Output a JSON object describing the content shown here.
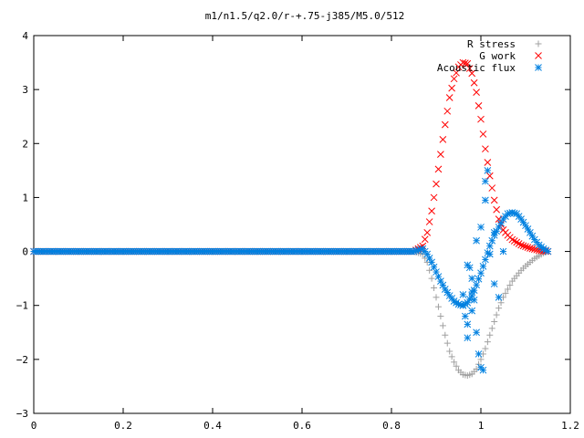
{
  "chart_data": {
    "type": "scatter",
    "title": "m1/n1.5/q2.0/r-+.75-j385/M5.0/512",
    "xlabel": "",
    "ylabel": "",
    "xlim": [
      0,
      1.2
    ],
    "ylim": [
      -3,
      4
    ],
    "x_ticks": [
      "0",
      "0.2",
      "0.4",
      "0.6",
      "0.8",
      "1",
      "1.2"
    ],
    "y_ticks": [
      "4",
      "3",
      "2",
      "1",
      "0",
      "−1",
      "−2",
      "−3"
    ],
    "x_tick_values": [
      0,
      0.2,
      0.4,
      0.6,
      0.8,
      1.0,
      1.2
    ],
    "y_tick_values": [
      4,
      3,
      2,
      1,
      0,
      -1,
      -2,
      -3
    ],
    "legend_position": "top-right",
    "grid": false,
    "series": [
      {
        "name": "R stress",
        "marker": "+",
        "color": "#a0a0a0",
        "x": [
          0.0,
          0.1,
          0.2,
          0.3,
          0.4,
          0.5,
          0.6,
          0.7,
          0.8,
          0.85,
          0.87,
          0.88,
          0.89,
          0.9,
          0.91,
          0.92,
          0.93,
          0.94,
          0.95,
          0.96,
          0.97,
          0.98,
          0.99,
          1.0,
          1.01,
          1.02,
          1.03,
          1.04,
          1.05,
          1.06,
          1.07,
          1.08,
          1.09,
          1.1,
          1.11,
          1.12,
          1.13,
          1.14,
          1.15
        ],
        "y": [
          0,
          0,
          0,
          0,
          0,
          0,
          0,
          0,
          0,
          0,
          -0.05,
          -0.2,
          -0.5,
          -0.85,
          -1.2,
          -1.55,
          -1.85,
          -2.05,
          -2.2,
          -2.28,
          -2.3,
          -2.27,
          -2.18,
          -2.0,
          -1.8,
          -1.55,
          -1.3,
          -1.05,
          -0.85,
          -0.7,
          -0.55,
          -0.45,
          -0.35,
          -0.27,
          -0.2,
          -0.13,
          -0.08,
          -0.03,
          0
        ]
      },
      {
        "name": "G work",
        "marker": "x",
        "color": "#ff0000",
        "x": [
          0.0,
          0.1,
          0.2,
          0.3,
          0.4,
          0.5,
          0.6,
          0.7,
          0.8,
          0.85,
          0.87,
          0.88,
          0.89,
          0.9,
          0.91,
          0.92,
          0.93,
          0.94,
          0.95,
          0.96,
          0.97,
          0.98,
          0.99,
          1.0,
          1.01,
          1.02,
          1.03,
          1.04,
          1.05,
          1.06,
          1.07,
          1.08,
          1.09,
          1.1,
          1.11,
          1.12,
          1.13,
          1.14,
          1.15
        ],
        "y": [
          0,
          0,
          0,
          0,
          0,
          0,
          0,
          0,
          0,
          0,
          0.1,
          0.35,
          0.75,
          1.25,
          1.8,
          2.35,
          2.85,
          3.2,
          3.42,
          3.5,
          3.48,
          3.3,
          2.95,
          2.45,
          1.9,
          1.4,
          0.95,
          0.6,
          0.4,
          0.3,
          0.22,
          0.17,
          0.12,
          0.09,
          0.06,
          0.04,
          0.02,
          0.01,
          0
        ]
      },
      {
        "name": "Acoustic flux",
        "marker": "*",
        "color": "#0080e0",
        "x": [
          0.0,
          0.1,
          0.2,
          0.3,
          0.4,
          0.5,
          0.6,
          0.7,
          0.8,
          0.85,
          0.87,
          0.88,
          0.89,
          0.9,
          0.91,
          0.92,
          0.93,
          0.94,
          0.95,
          0.96,
          0.97,
          0.98,
          0.99,
          1.0,
          1.01,
          1.02,
          1.03,
          1.04,
          1.05,
          1.06,
          1.07,
          1.08,
          1.09,
          1.1,
          1.11,
          1.12,
          1.13,
          1.14,
          1.15,
          0.96,
          0.965,
          0.97,
          0.975,
          0.98,
          0.985,
          0.99,
          0.995,
          1.0,
          1.005,
          1.01,
          1.015,
          0.96,
          0.97,
          0.98,
          1.03,
          1.04,
          1.05,
          1.01,
          1.0,
          0.99,
          0.97,
          0.98,
          1.02,
          1.03
        ],
        "y": [
          0,
          0,
          0,
          0,
          0,
          0,
          0,
          0,
          0,
          0,
          0.05,
          -0.05,
          -0.2,
          -0.38,
          -0.55,
          -0.7,
          -0.82,
          -0.92,
          -0.98,
          -1.0,
          -0.95,
          -0.82,
          -0.62,
          -0.4,
          -0.15,
          0.1,
          0.3,
          0.45,
          0.6,
          0.7,
          0.72,
          0.7,
          0.6,
          0.48,
          0.35,
          0.22,
          0.12,
          0.05,
          0,
          -0.8,
          -1.2,
          -1.6,
          -0.3,
          -0.5,
          -0.9,
          -1.5,
          -1.9,
          -2.15,
          -2.2,
          0.95,
          1.5,
          -1.0,
          -0.25,
          -0.75,
          -0.6,
          -0.85,
          0.0,
          1.3,
          0.45,
          0.2,
          -1.35,
          -1.1,
          -0.05,
          0.35
        ]
      }
    ]
  }
}
